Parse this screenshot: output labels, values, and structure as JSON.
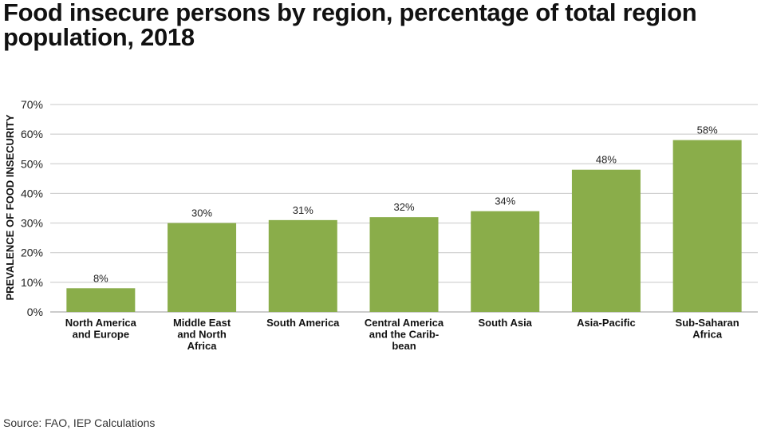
{
  "title": "Food insecure persons by region, percentage of total region population, 2018",
  "source": "Source: FAO, IEP Calculations",
  "chart_data": {
    "type": "bar",
    "title": "Food insecure persons by region, percentage of total region population, 2018",
    "xlabel": "",
    "ylabel": "PREVALENCE OF FOOD INSECURITY",
    "categories": [
      [
        "North America",
        "and Europe"
      ],
      [
        "Middle East",
        "and North",
        "Africa"
      ],
      [
        "South America"
      ],
      [
        "Central America",
        "and the Carib-",
        "bean"
      ],
      [
        "South Asia"
      ],
      [
        "Asia-Pacific"
      ],
      [
        "Sub-Saharan",
        "Africa"
      ]
    ],
    "values": [
      8,
      30,
      31,
      32,
      34,
      48,
      58
    ],
    "data_labels": [
      "8%",
      "30%",
      "31%",
      "32%",
      "34%",
      "48%",
      "58%"
    ],
    "yticks": [
      0,
      10,
      20,
      30,
      40,
      50,
      60,
      70
    ],
    "ytick_labels": [
      "0%",
      "10%",
      "20%",
      "30%",
      "40%",
      "50%",
      "60%",
      "70%"
    ],
    "ylim": [
      0,
      70
    ],
    "grid": true,
    "legend": "none",
    "bar_color": "#8aad4a",
    "grid_color": "#c8c8c8"
  }
}
